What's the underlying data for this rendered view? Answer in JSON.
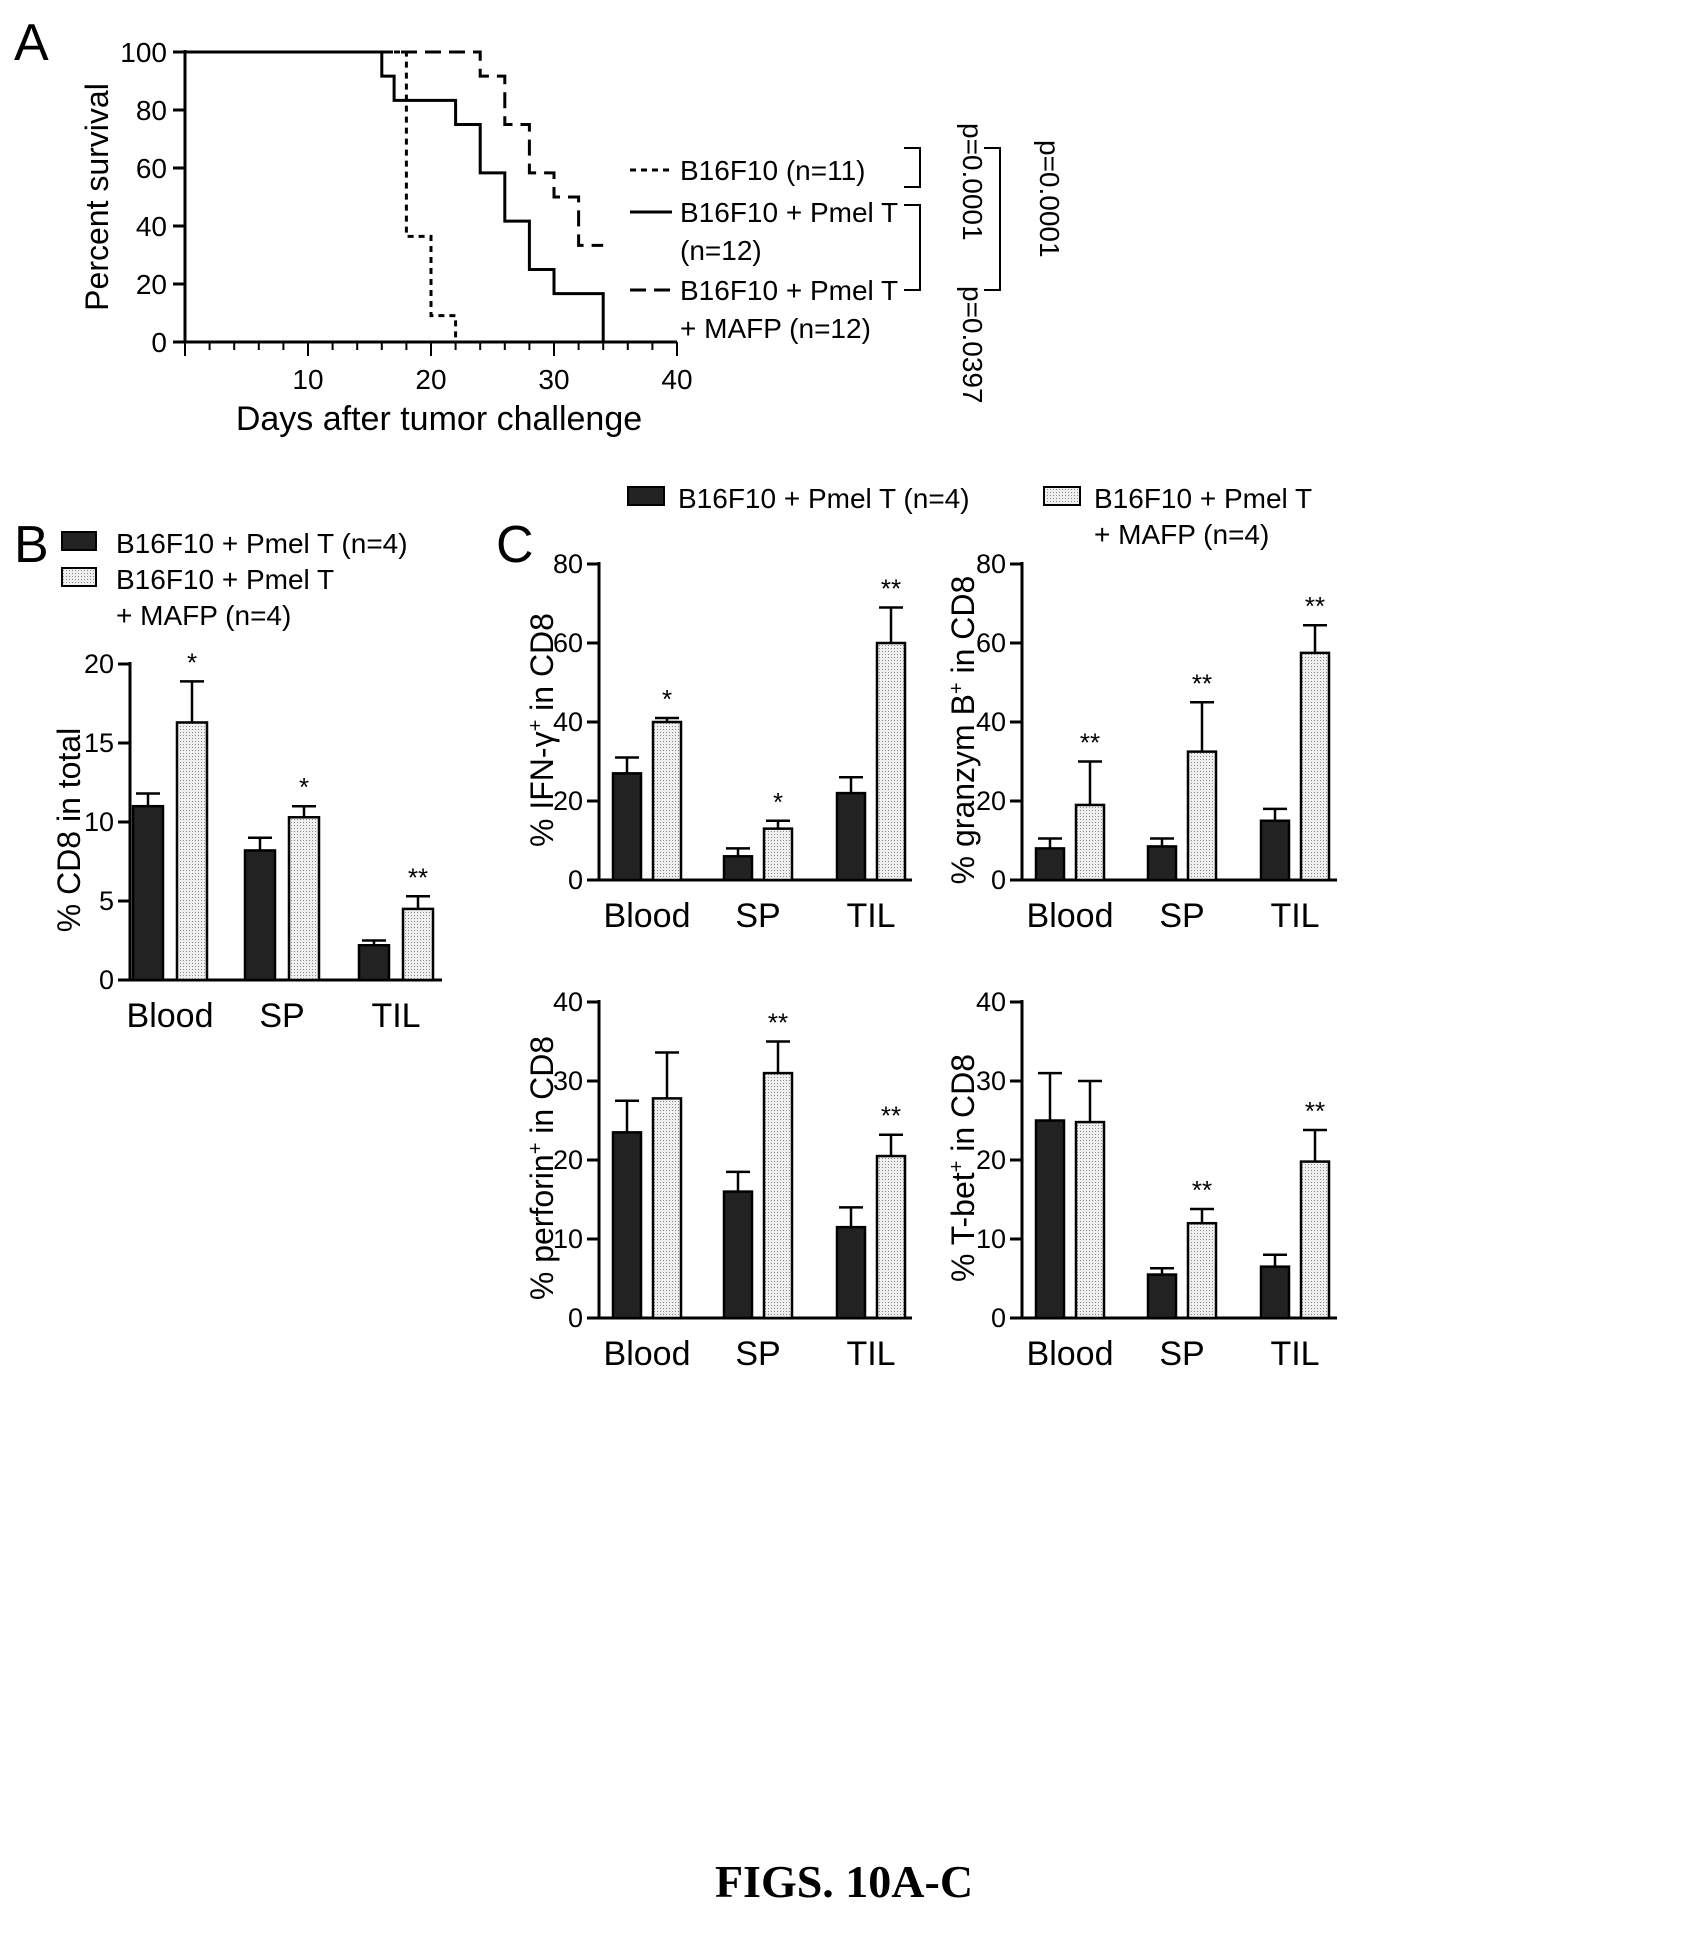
{
  "figure_caption": "FIGS. 10A-C",
  "panel_letters": {
    "A": "A",
    "B": "B",
    "C": "C"
  },
  "colors": {
    "dark_bar": "#222222",
    "light_bar": "#dedede",
    "line": "#000000"
  },
  "chart_data": [
    {
      "id": "A",
      "type": "line",
      "subtype": "kaplan-meier",
      "xlabel": "Days after tumor challenge",
      "ylabel": "Percent survival",
      "xlim": [
        0,
        40
      ],
      "ylim": [
        0,
        100
      ],
      "xticks": [
        "10",
        "20",
        "30",
        "40"
      ],
      "yticks": [
        "0",
        "20",
        "40",
        "60",
        "80",
        "100"
      ],
      "series": [
        {
          "name": "B16F10 (n=11)",
          "legend_lines": [
            "B16F10 (n=11)"
          ],
          "dash": "dotted",
          "steps": [
            [
              0,
              100
            ],
            [
              18,
              100
            ],
            [
              18,
              36.4
            ],
            [
              20,
              36.4
            ],
            [
              20,
              9.1
            ],
            [
              22,
              9.1
            ],
            [
              22,
              0
            ]
          ]
        },
        {
          "name": "B16F10 + Pmel T (n=12)",
          "legend_lines": [
            "B16F10 + Pmel T",
            "(n=12)"
          ],
          "dash": "solid",
          "steps": [
            [
              0,
              100
            ],
            [
              16,
              100
            ],
            [
              16,
              91.7
            ],
            [
              17,
              91.7
            ],
            [
              17,
              83.3
            ],
            [
              22,
              83.3
            ],
            [
              22,
              75
            ],
            [
              24,
              75
            ],
            [
              24,
              58.3
            ],
            [
              26,
              58.3
            ],
            [
              26,
              41.7
            ],
            [
              28,
              41.7
            ],
            [
              28,
              25
            ],
            [
              30,
              25
            ],
            [
              30,
              16.7
            ],
            [
              34,
              16.7
            ],
            [
              34,
              0
            ]
          ]
        },
        {
          "name": "B16F10 + Pmel T + MAFP (n=12)",
          "legend_lines": [
            "B16F10 + Pmel T",
            "+ MAFP (n=12)"
          ],
          "dash": "dashed",
          "steps": [
            [
              0,
              100
            ],
            [
              24,
              100
            ],
            [
              24,
              91.7
            ],
            [
              26,
              91.7
            ],
            [
              26,
              75
            ],
            [
              28,
              75
            ],
            [
              28,
              58.3
            ],
            [
              30,
              58.3
            ],
            [
              30,
              50
            ],
            [
              32,
              50
            ],
            [
              32,
              33.3
            ],
            [
              34,
              33.3
            ]
          ]
        }
      ],
      "pvalues": [
        "p=0.0001",
        "p=0.0397",
        "p=0.0001"
      ]
    },
    {
      "id": "B",
      "type": "bar",
      "ylabel": "% CD8 in total",
      "categories": [
        "Blood",
        "SP",
        "TIL"
      ],
      "ylim": [
        0,
        20
      ],
      "yticks": [
        "0",
        "5",
        "10",
        "15",
        "20"
      ],
      "legend": [
        "B16F10 + Pmel T (n=4)",
        "B16F10 + Pmel T",
        "+ MAFP (n=4)"
      ],
      "series": [
        {
          "name": "B16F10 + Pmel T (n=4)",
          "values": [
            11,
            8.2,
            2.2
          ],
          "errors": [
            0.8,
            0.8,
            0.3
          ]
        },
        {
          "name": "B16F10 + Pmel T + MAFP (n=4)",
          "values": [
            16.3,
            10.3,
            4.5
          ],
          "errors": [
            2.6,
            0.7,
            0.8
          ]
        }
      ],
      "significance": [
        "*",
        "*",
        "**"
      ]
    },
    {
      "id": "C1",
      "type": "bar",
      "ylabel_parts": [
        "% IFN-γ",
        "+",
        " in CD8"
      ],
      "categories": [
        "Blood",
        "SP",
        "TIL"
      ],
      "ylim": [
        0,
        80
      ],
      "yticks": [
        "0",
        "20",
        "40",
        "60",
        "80"
      ],
      "series": [
        {
          "name": "B16F10 + Pmel T (n=4)",
          "values": [
            27,
            6,
            22
          ],
          "errors": [
            4,
            2,
            4
          ]
        },
        {
          "name": "B16F10 + Pmel T + MAFP (n=4)",
          "values": [
            40,
            13,
            60
          ],
          "errors": [
            1,
            2,
            9
          ]
        }
      ],
      "significance": [
        "*",
        "*",
        "**"
      ]
    },
    {
      "id": "C2",
      "type": "bar",
      "ylabel_parts": [
        "% granzym B",
        "+",
        " in CD8"
      ],
      "categories": [
        "Blood",
        "SP",
        "TIL"
      ],
      "ylim": [
        0,
        80
      ],
      "yticks": [
        "0",
        "20",
        "40",
        "60",
        "80"
      ],
      "series": [
        {
          "name": "B16F10 + Pmel T (n=4)",
          "values": [
            8,
            8.5,
            15
          ],
          "errors": [
            2.5,
            2,
            3
          ]
        },
        {
          "name": "B16F10 + Pmel T + MAFP (n=4)",
          "values": [
            19,
            32.5,
            57.5
          ],
          "errors": [
            11,
            12.5,
            7
          ]
        }
      ],
      "significance": [
        "**",
        "**",
        "**"
      ]
    },
    {
      "id": "C3",
      "type": "bar",
      "ylabel_parts": [
        "% perforin",
        "+",
        " in CD8"
      ],
      "categories": [
        "Blood",
        "SP",
        "TIL"
      ],
      "ylim": [
        0,
        40
      ],
      "yticks": [
        "0",
        "10",
        "20",
        "30",
        "40"
      ],
      "series": [
        {
          "name": "B16F10 + Pmel T (n=4)",
          "values": [
            23.5,
            16,
            11.5
          ],
          "errors": [
            4,
            2.5,
            2.5
          ]
        },
        {
          "name": "B16F10 + Pmel T + MAFP (n=4)",
          "values": [
            27.8,
            31,
            20.5
          ],
          "errors": [
            5.8,
            4,
            2.7
          ]
        }
      ],
      "significance": [
        "",
        "**",
        "**"
      ]
    },
    {
      "id": "C4",
      "type": "bar",
      "ylabel_parts": [
        "% T-bet",
        "+",
        " in CD8"
      ],
      "categories": [
        "Blood",
        "SP",
        "TIL"
      ],
      "ylim": [
        0,
        40
      ],
      "yticks": [
        "0",
        "10",
        "20",
        "30",
        "40"
      ],
      "series": [
        {
          "name": "B16F10 + Pmel T (n=4)",
          "values": [
            25,
            5.5,
            6.5
          ],
          "errors": [
            6,
            0.8,
            1.5
          ]
        },
        {
          "name": "B16F10 + Pmel T + MAFP (n=4)",
          "values": [
            24.8,
            12,
            19.8
          ],
          "errors": [
            5.2,
            1.8,
            4
          ]
        }
      ],
      "significance": [
        "",
        "**",
        "**"
      ]
    }
  ],
  "legend_C": [
    "B16F10 + Pmel T (n=4)",
    "B16F10 + Pmel T",
    "+ MAFP (n=4)"
  ]
}
